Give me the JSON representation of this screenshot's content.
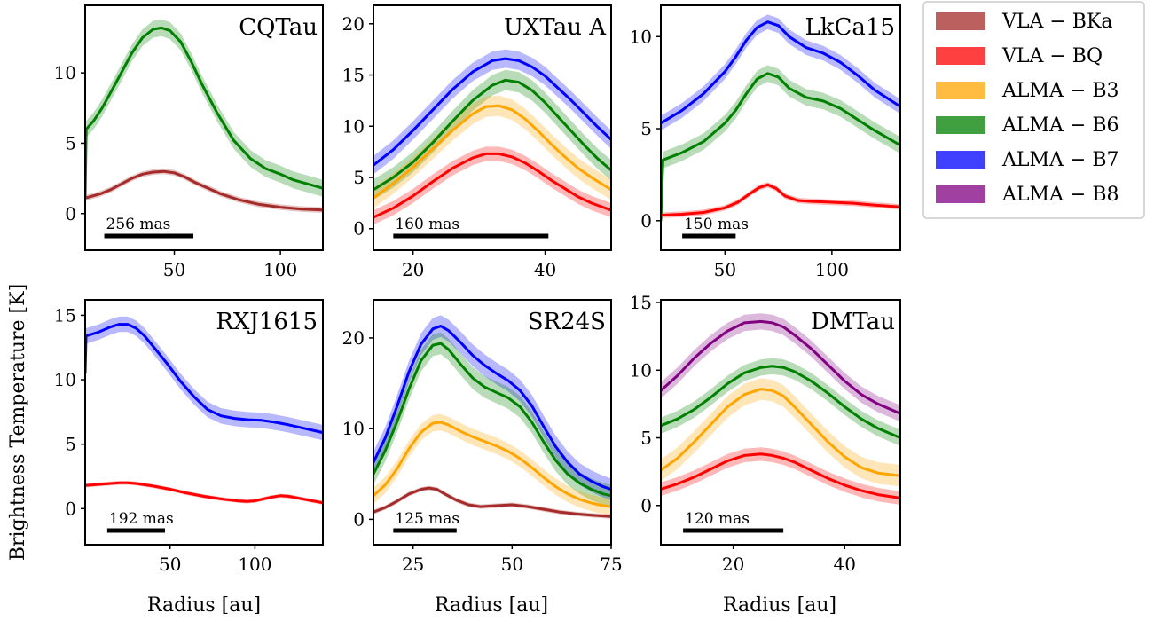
{
  "figure": {
    "ylabel": "Brightness Temperature [K]",
    "xlabel": "Radius [au]"
  },
  "legend": [
    {
      "label": "VLA − BKa",
      "color": "#a52a2a"
    },
    {
      "label": "VLA − BQ",
      "color": "#ff0000"
    },
    {
      "label": "ALMA − B3",
      "color": "#ffa500"
    },
    {
      "label": "ALMA − B6",
      "color": "#008000"
    },
    {
      "label": "ALMA − B7",
      "color": "#0000ff"
    },
    {
      "label": "ALMA − B8",
      "color": "#800080"
    }
  ],
  "chart_data": [
    {
      "type": "line",
      "title": "CQTau",
      "xlim": [
        8,
        120
      ],
      "ylim": [
        -2.6,
        14.8
      ],
      "xticks": [
        50,
        100
      ],
      "yticks": [
        0,
        5,
        10
      ],
      "scalebar": {
        "label": "256 mas",
        "x0": 17,
        "x1": 59
      },
      "series": [
        {
          "band": "ALMA − B6",
          "color": "#008000",
          "x": [
            8,
            8.5,
            12,
            16,
            20,
            25,
            30,
            35,
            40,
            44,
            48,
            53,
            58,
            63,
            70,
            78,
            86,
            93,
            100,
            106,
            113,
            120
          ],
          "y": [
            1.2,
            6.0,
            6.6,
            7.5,
            8.6,
            10.0,
            11.4,
            12.5,
            13.1,
            13.2,
            13.0,
            12.2,
            10.8,
            9.2,
            7.2,
            5.2,
            3.9,
            3.2,
            2.8,
            2.4,
            2.1,
            1.8
          ],
          "err": 0.6
        },
        {
          "band": "VLA − BKa",
          "color": "#a52a2a",
          "x": [
            8,
            15,
            20,
            25,
            30,
            35,
            40,
            45,
            50,
            55,
            60,
            66,
            72,
            80,
            90,
            100,
            110,
            120
          ],
          "y": [
            1.1,
            1.4,
            1.7,
            2.1,
            2.5,
            2.8,
            2.95,
            3.0,
            2.9,
            2.6,
            2.2,
            1.8,
            1.4,
            1.0,
            0.65,
            0.45,
            0.32,
            0.25
          ],
          "err": 0.2
        }
      ]
    },
    {
      "type": "line",
      "title": "UXTau A",
      "xlim": [
        14,
        50
      ],
      "ylim": [
        -2.1,
        21.8
      ],
      "xticks": [
        20,
        40
      ],
      "yticks": [
        0,
        5,
        10,
        15,
        20
      ],
      "scalebar": {
        "label": "160 mas",
        "x0": 17,
        "x1": 40.5
      },
      "series": [
        {
          "band": "ALMA − B7",
          "color": "#0000ff",
          "x": [
            14,
            17,
            20,
            23,
            26,
            29,
            32,
            34,
            36,
            38,
            40,
            42,
            44,
            46,
            48,
            50
          ],
          "y": [
            6.2,
            7.7,
            9.6,
            11.6,
            13.6,
            15.3,
            16.4,
            16.6,
            16.4,
            15.8,
            14.9,
            13.7,
            12.5,
            11.2,
            9.9,
            8.7
          ],
          "err": 0.9
        },
        {
          "band": "ALMA − B6",
          "color": "#008000",
          "x": [
            14,
            17,
            20,
            23,
            26,
            29,
            32,
            34,
            36,
            38,
            40,
            42,
            44,
            46,
            48,
            50
          ],
          "y": [
            3.8,
            5.0,
            6.5,
            8.4,
            10.5,
            12.5,
            14.0,
            14.5,
            14.3,
            13.5,
            12.3,
            10.9,
            9.5,
            8.1,
            6.8,
            5.7
          ],
          "err": 1.0
        },
        {
          "band": "ALMA − B3",
          "color": "#ffa500",
          "x": [
            14,
            17,
            20,
            23,
            26,
            29,
            31,
            33,
            35,
            37,
            39,
            41,
            43,
            45,
            47,
            50
          ],
          "y": [
            3.0,
            4.4,
            6.0,
            7.8,
            9.6,
            11.2,
            11.9,
            12.0,
            11.6,
            10.7,
            9.5,
            8.2,
            7.0,
            5.9,
            5.0,
            3.8
          ],
          "err": 1.0
        },
        {
          "band": "VLA − BQ",
          "color": "#ff0000",
          "x": [
            14,
            17,
            20,
            23,
            26,
            29,
            31,
            33,
            35,
            37,
            39,
            41,
            43,
            45,
            47,
            50
          ],
          "y": [
            1.1,
            2.0,
            3.2,
            4.6,
            5.9,
            6.9,
            7.3,
            7.3,
            7.0,
            6.4,
            5.6,
            4.7,
            3.9,
            3.1,
            2.5,
            1.8
          ],
          "err": 0.7
        }
      ]
    },
    {
      "type": "line",
      "title": "LkCa15",
      "xlim": [
        20,
        132
      ],
      "ylim": [
        -1.6,
        11.7
      ],
      "xticks": [
        50,
        100
      ],
      "yticks": [
        0,
        5,
        10
      ],
      "scalebar": {
        "label": "150 mas",
        "x0": 30,
        "x1": 55
      },
      "series": [
        {
          "band": "ALMA − B7",
          "color": "#0000ff",
          "x": [
            20,
            30,
            40,
            50,
            55,
            60,
            65,
            70,
            75,
            80,
            88,
            96,
            104,
            112,
            120,
            132
          ],
          "y": [
            5.3,
            6.0,
            6.9,
            8.1,
            8.9,
            9.8,
            10.5,
            10.8,
            10.6,
            10.0,
            9.4,
            9.1,
            8.6,
            7.9,
            7.1,
            6.2
          ],
          "err": 0.4
        },
        {
          "band": "ALMA − B6",
          "color": "#008000",
          "x": [
            20,
            21,
            30,
            40,
            50,
            55,
            60,
            65,
            70,
            75,
            80,
            88,
            96,
            104,
            112,
            120,
            132
          ],
          "y": [
            0.0,
            3.3,
            3.7,
            4.3,
            5.3,
            6.0,
            6.9,
            7.7,
            8.0,
            7.8,
            7.2,
            6.7,
            6.5,
            6.1,
            5.5,
            4.9,
            4.1
          ],
          "err": 0.45
        },
        {
          "band": "VLA − BQ",
          "color": "#ff0000",
          "x": [
            20,
            30,
            40,
            50,
            56,
            62,
            66,
            70,
            74,
            78,
            84,
            90,
            100,
            110,
            120,
            132
          ],
          "y": [
            0.3,
            0.35,
            0.45,
            0.7,
            1.0,
            1.5,
            1.8,
            1.95,
            1.75,
            1.35,
            1.1,
            1.05,
            1.0,
            0.95,
            0.85,
            0.75
          ],
          "err": 0.15
        }
      ]
    },
    {
      "type": "line",
      "title": "RXJ1615",
      "xlim": [
        0,
        140
      ],
      "ylim": [
        -2.8,
        16.2
      ],
      "xticks": [
        50,
        100
      ],
      "yticks": [
        0,
        5,
        10,
        15
      ],
      "scalebar": {
        "label": "192 mas",
        "x0": 13,
        "x1": 47
      },
      "series": [
        {
          "band": "ALMA − B7",
          "color": "#0000ff",
          "x": [
            0,
            0.5,
            8,
            15,
            20,
            25,
            30,
            35,
            40,
            48,
            56,
            64,
            72,
            80,
            88,
            96,
            104,
            112,
            120,
            130,
            140
          ],
          "y": [
            10.5,
            13.4,
            13.7,
            14.1,
            14.3,
            14.3,
            14.0,
            13.4,
            12.6,
            11.3,
            9.9,
            8.7,
            7.7,
            7.2,
            7.0,
            6.9,
            6.85,
            6.7,
            6.5,
            6.2,
            5.9
          ],
          "err": 0.6
        },
        {
          "band": "VLA − BQ",
          "color": "#ff0000",
          "x": [
            0,
            10,
            20,
            25,
            30,
            40,
            50,
            60,
            70,
            80,
            90,
            95,
            100,
            105,
            110,
            115,
            120,
            130,
            140
          ],
          "y": [
            1.8,
            1.9,
            2.0,
            2.0,
            1.95,
            1.75,
            1.5,
            1.2,
            0.95,
            0.75,
            0.6,
            0.55,
            0.6,
            0.75,
            0.9,
            1.0,
            0.95,
            0.7,
            0.45
          ],
          "err": 0.15
        }
      ]
    },
    {
      "type": "line",
      "title": "SR24S",
      "xlim": [
        15,
        75
      ],
      "ylim": [
        -2.8,
        24.2
      ],
      "xticks": [
        25,
        50,
        75
      ],
      "yticks": [
        0,
        10,
        20
      ],
      "scalebar": {
        "label": "125 mas",
        "x0": 20,
        "x1": 36
      },
      "series": [
        {
          "band": "ALMA − B7",
          "color": "#0000ff",
          "x": [
            15,
            18,
            21,
            24,
            27,
            30,
            32,
            34,
            37,
            40,
            43,
            46,
            49,
            52,
            55,
            58,
            61,
            64,
            67,
            70,
            73,
            75
          ],
          "y": [
            6.3,
            9.0,
            12.5,
            16.3,
            19.3,
            21.0,
            21.3,
            20.8,
            19.5,
            18.1,
            17.0,
            16.1,
            15.3,
            14.2,
            12.5,
            10.2,
            8.0,
            6.3,
            5.0,
            4.2,
            3.6,
            3.3
          ],
          "err": 1.2
        },
        {
          "band": "ALMA − B6",
          "color": "#008000",
          "x": [
            15,
            18,
            21,
            24,
            27,
            30,
            32,
            34,
            37,
            40,
            43,
            46,
            49,
            52,
            55,
            58,
            61,
            64,
            67,
            70,
            73,
            75
          ],
          "y": [
            5.0,
            7.6,
            10.8,
            14.4,
            17.5,
            19.2,
            19.4,
            18.7,
            17.1,
            15.6,
            14.6,
            14.0,
            13.4,
            12.4,
            10.7,
            8.5,
            6.5,
            5.0,
            4.0,
            3.3,
            2.8,
            2.6
          ],
          "err": 1.2
        },
        {
          "band": "ALMA − B3",
          "color": "#ffa500",
          "x": [
            15,
            18,
            21,
            24,
            27,
            30,
            32,
            34,
            37,
            40,
            43,
            46,
            49,
            52,
            55,
            58,
            61,
            64,
            67,
            70,
            73,
            75
          ],
          "y": [
            2.6,
            3.8,
            5.6,
            7.8,
            9.6,
            10.6,
            10.7,
            10.4,
            9.7,
            9.1,
            8.6,
            8.1,
            7.5,
            6.7,
            5.7,
            4.6,
            3.6,
            2.8,
            2.2,
            1.8,
            1.5,
            1.4
          ],
          "err": 0.9
        },
        {
          "band": "VLA − BKa",
          "color": "#a52a2a",
          "x": [
            15,
            18,
            21,
            24,
            27,
            29,
            31,
            33,
            36,
            39,
            42,
            46,
            50,
            54,
            58,
            62,
            66,
            70,
            75
          ],
          "y": [
            0.8,
            1.3,
            2.0,
            2.8,
            3.3,
            3.45,
            3.3,
            2.8,
            2.1,
            1.6,
            1.4,
            1.5,
            1.6,
            1.4,
            1.1,
            0.8,
            0.6,
            0.45,
            0.3
          ],
          "err": 0.25
        }
      ]
    },
    {
      "type": "line",
      "title": "DMTau",
      "xlim": [
        7,
        50
      ],
      "ylim": [
        -2.9,
        15.2
      ],
      "xticks": [
        20,
        40
      ],
      "yticks": [
        0,
        5,
        10,
        15
      ],
      "scalebar": {
        "label": "120 mas",
        "x0": 11,
        "x1": 29
      },
      "series": [
        {
          "band": "ALMA − B8",
          "color": "#800080",
          "x": [
            7,
            10,
            13,
            16,
            19,
            22,
            25,
            27,
            29,
            31,
            34,
            37,
            40,
            43,
            46,
            50
          ],
          "y": [
            8.5,
            9.6,
            10.9,
            12.0,
            12.9,
            13.5,
            13.6,
            13.5,
            13.2,
            12.6,
            11.6,
            10.4,
            9.2,
            8.2,
            7.5,
            6.8
          ],
          "err": 0.6
        },
        {
          "band": "ALMA − B6",
          "color": "#008000",
          "x": [
            7,
            10,
            13,
            16,
            19,
            22,
            25,
            27,
            29,
            31,
            34,
            37,
            40,
            43,
            46,
            50
          ],
          "y": [
            5.9,
            6.4,
            7.1,
            8.0,
            9.0,
            9.8,
            10.2,
            10.3,
            10.2,
            9.9,
            9.2,
            8.3,
            7.3,
            6.4,
            5.7,
            5.0
          ],
          "err": 0.6
        },
        {
          "band": "ALMA − B3",
          "color": "#ffa500",
          "x": [
            7,
            10,
            13,
            16,
            19,
            22,
            25,
            27,
            29,
            31,
            34,
            37,
            40,
            43,
            46,
            50
          ],
          "y": [
            2.6,
            3.5,
            4.7,
            6.0,
            7.3,
            8.2,
            8.6,
            8.5,
            8.1,
            7.3,
            6.0,
            4.7,
            3.6,
            2.8,
            2.4,
            2.2
          ],
          "err": 0.8
        },
        {
          "band": "VLA − BQ",
          "color": "#ff0000",
          "x": [
            7,
            10,
            13,
            16,
            19,
            22,
            25,
            27,
            29,
            31,
            34,
            37,
            40,
            43,
            46,
            50
          ],
          "y": [
            1.2,
            1.6,
            2.1,
            2.7,
            3.3,
            3.7,
            3.8,
            3.7,
            3.5,
            3.2,
            2.6,
            2.0,
            1.5,
            1.1,
            0.8,
            0.55
          ],
          "err": 0.5
        }
      ]
    }
  ]
}
